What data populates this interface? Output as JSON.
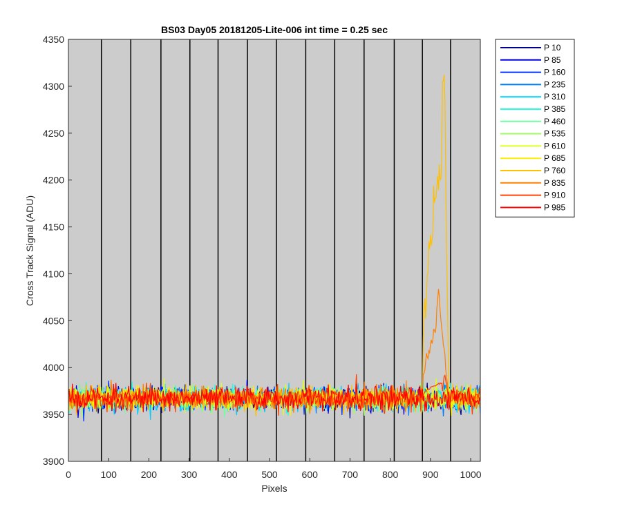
{
  "chart_data": {
    "type": "line",
    "title": "BS03 Day05 20181205-Lite-006 int time = 0.25 sec",
    "xlabel": "Pixels",
    "ylabel": "Cross Track Signal (ADU)",
    "xlim": [
      0,
      1024
    ],
    "ylim": [
      3900,
      4350
    ],
    "xticks": [
      0,
      100,
      200,
      300,
      400,
      500,
      600,
      700,
      800,
      900,
      1000
    ],
    "yticks": [
      3900,
      3950,
      4000,
      4050,
      4100,
      4150,
      4200,
      4250,
      4300,
      4350
    ],
    "grid": false,
    "legend_position": "outside-right",
    "background_color": "#cccccc",
    "vertical_lines_x": [
      82,
      155,
      230,
      302,
      372,
      445,
      517,
      590,
      662,
      735,
      810,
      880,
      950
    ],
    "baseline_mean": 3967,
    "baseline_noise": 11,
    "series": [
      {
        "name": "P 10",
        "color": "#00008f"
      },
      {
        "name": "P 85",
        "color": "#0000df"
      },
      {
        "name": "P 160",
        "color": "#0030ff"
      },
      {
        "name": "P 235",
        "color": "#0080ff"
      },
      {
        "name": "P 310",
        "color": "#00cfff"
      },
      {
        "name": "P 385",
        "color": "#20ffdf"
      },
      {
        "name": "P 460",
        "color": "#70ffa0"
      },
      {
        "name": "P 535",
        "color": "#a0ff60"
      },
      {
        "name": "P 610",
        "color": "#dfff20"
      },
      {
        "name": "P 685",
        "color": "#ffef00"
      },
      {
        "name": "P 760",
        "color": "#ffc000"
      },
      {
        "name": "P 835",
        "color": "#ff8000"
      },
      {
        "name": "P 910",
        "color": "#ff4000"
      },
      {
        "name": "P 985",
        "color": "#ff0000"
      }
    ],
    "features": [
      {
        "series": "P 760",
        "x_start": 880,
        "x_end": 945,
        "peak_x": 935,
        "peak_y": 4315,
        "plateau_y": 4235
      },
      {
        "series": "P 835",
        "x_start": 880,
        "x_end": 945,
        "peak_x": 920,
        "peak_y": 4080,
        "plateau_y": 4045
      },
      {
        "series": "P 910",
        "x_start": 880,
        "x_end": 945,
        "peak_x": 935,
        "peak_y": 3995,
        "plateau_y": 3985
      }
    ]
  }
}
